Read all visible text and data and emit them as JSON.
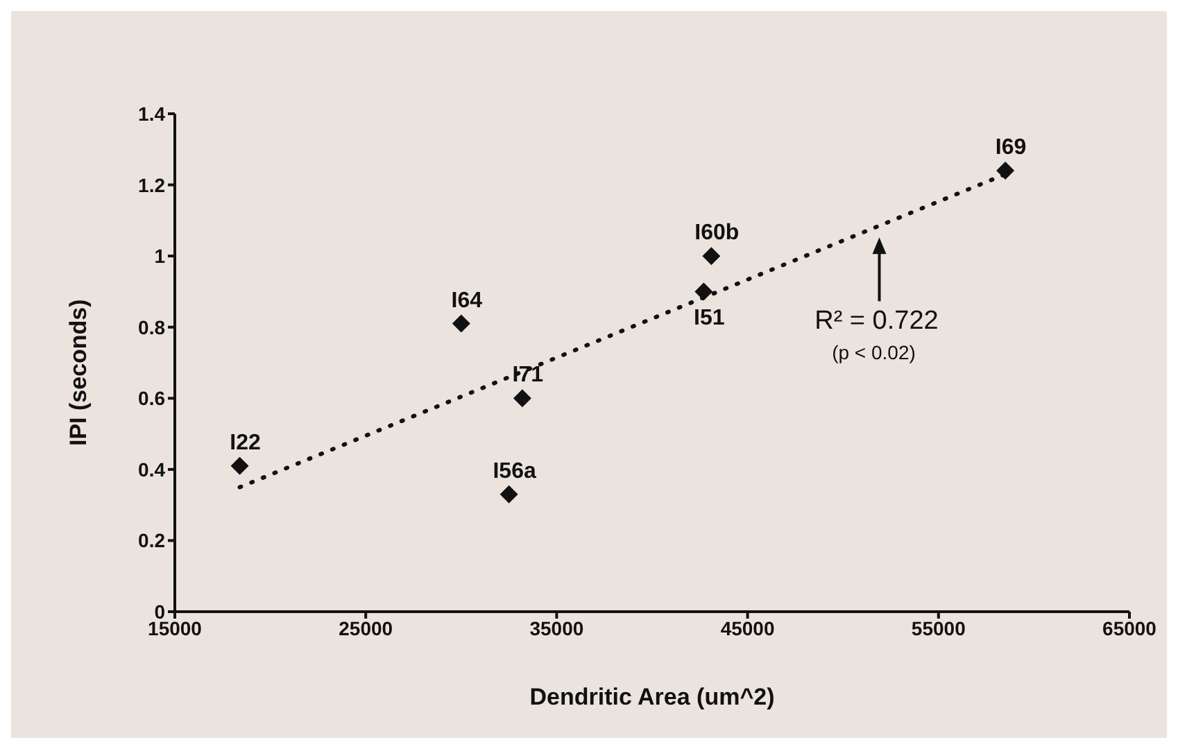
{
  "chart_data": {
    "type": "scatter",
    "xlabel": "Dendritic Area (um^2)",
    "ylabel": "IPI (seconds)",
    "series": [
      {
        "color": "#111111",
        "marker": "diamond",
        "x": [
          18400,
          30000,
          33200,
          32500,
          43100,
          42700,
          58500
        ],
        "values": [
          0.41,
          0.81,
          0.6,
          0.33,
          1.0,
          0.9,
          1.24
        ]
      },
      {
        "type": "line",
        "color": "#111111",
        "line_style": "dotted",
        "marker": "none",
        "x": [
          18400,
          58500
        ],
        "values": [
          0.35,
          1.23
        ]
      }
    ],
    "annotations": [
      {
        "text": "I22",
        "x": 18400,
        "y": 0.41
      },
      {
        "text": "I64",
        "x": 30000,
        "y": 0.81
      },
      {
        "text": "I71",
        "x": 33200,
        "y": 0.6
      },
      {
        "text": "I56a",
        "x": 32500,
        "y": 0.33
      },
      {
        "text": "I60b",
        "x": 43100,
        "y": 1.0
      },
      {
        "text": "I51",
        "x": 42700,
        "y": 0.9
      },
      {
        "text": "I69",
        "x": 58500,
        "y": 1.24
      },
      {
        "text": "R² = 0.722",
        "x": 51900,
        "y": 1.06
      },
      "(p < 0.02)"
    ],
    "xlim": [
      15000,
      65000
    ],
    "xticks": [
      15000,
      25000,
      35000,
      45000,
      55000,
      65000
    ],
    "ylim": [
      0,
      1.4
    ],
    "yticks": [
      0,
      0.2,
      0.4,
      0.6,
      0.8,
      1,
      1.2,
      1.4
    ],
    "grid": false,
    "legend": false
  }
}
